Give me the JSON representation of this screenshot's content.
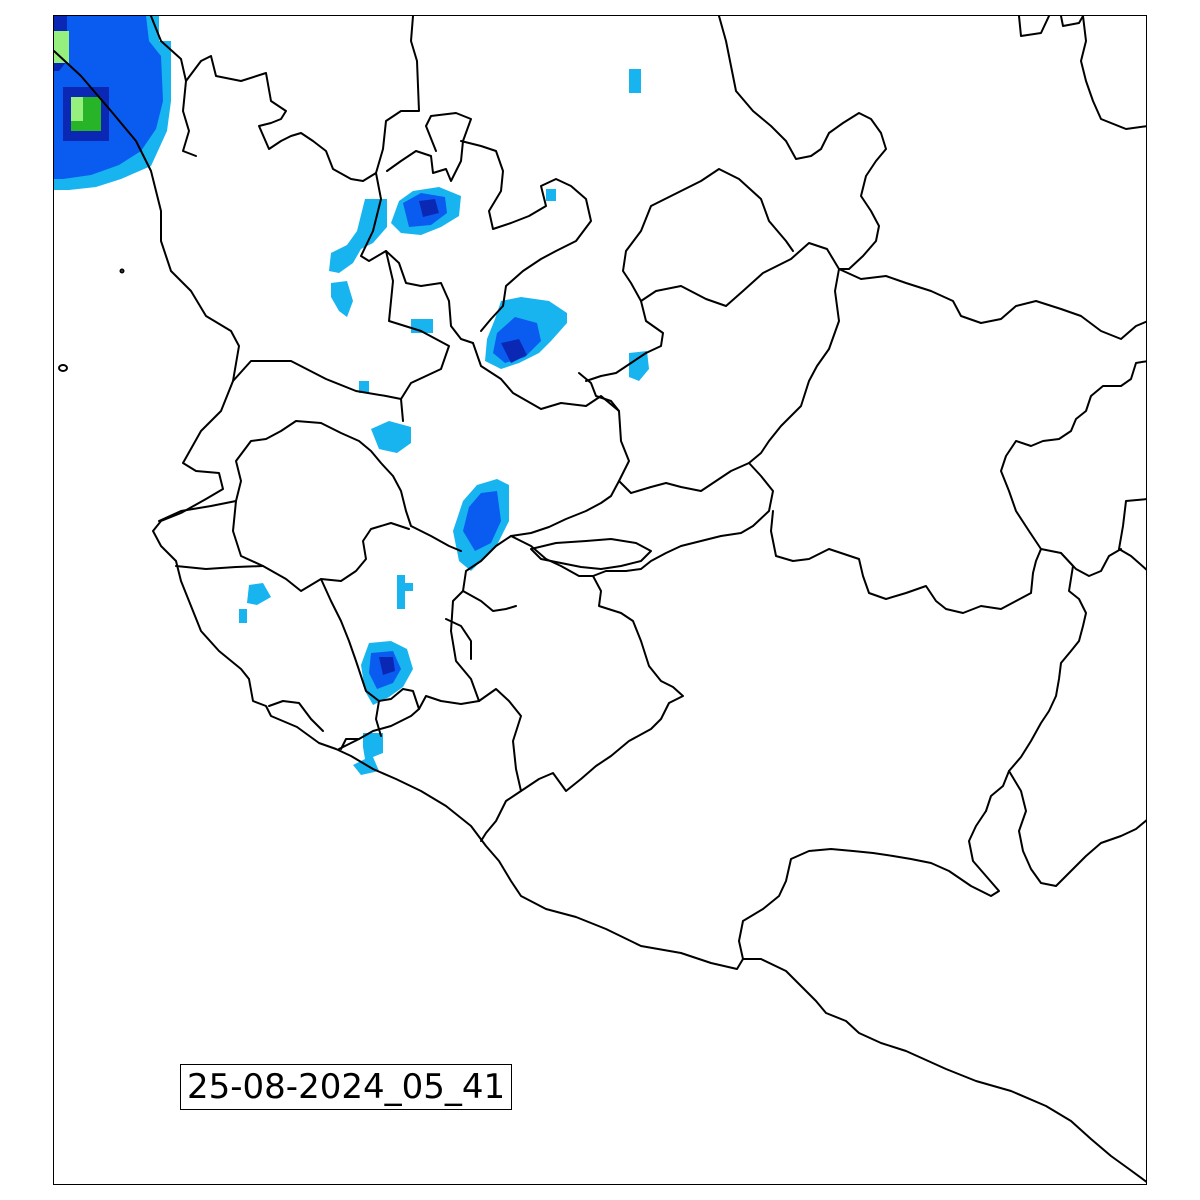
{
  "map": {
    "timestamp_label": "25-08-2024_05_41",
    "colors": {
      "radar_light": "#17b4f0",
      "radar_mid": "#0a5cf0",
      "radar_strong": "#0a28b4",
      "radar_heavy": "#28b428",
      "radar_very_heavy": "#96f07d",
      "boundary": "#000000",
      "background": "#ffffff"
    },
    "precipitation_levels": [
      "light",
      "moderate",
      "strong",
      "heavy",
      "very-heavy"
    ]
  }
}
